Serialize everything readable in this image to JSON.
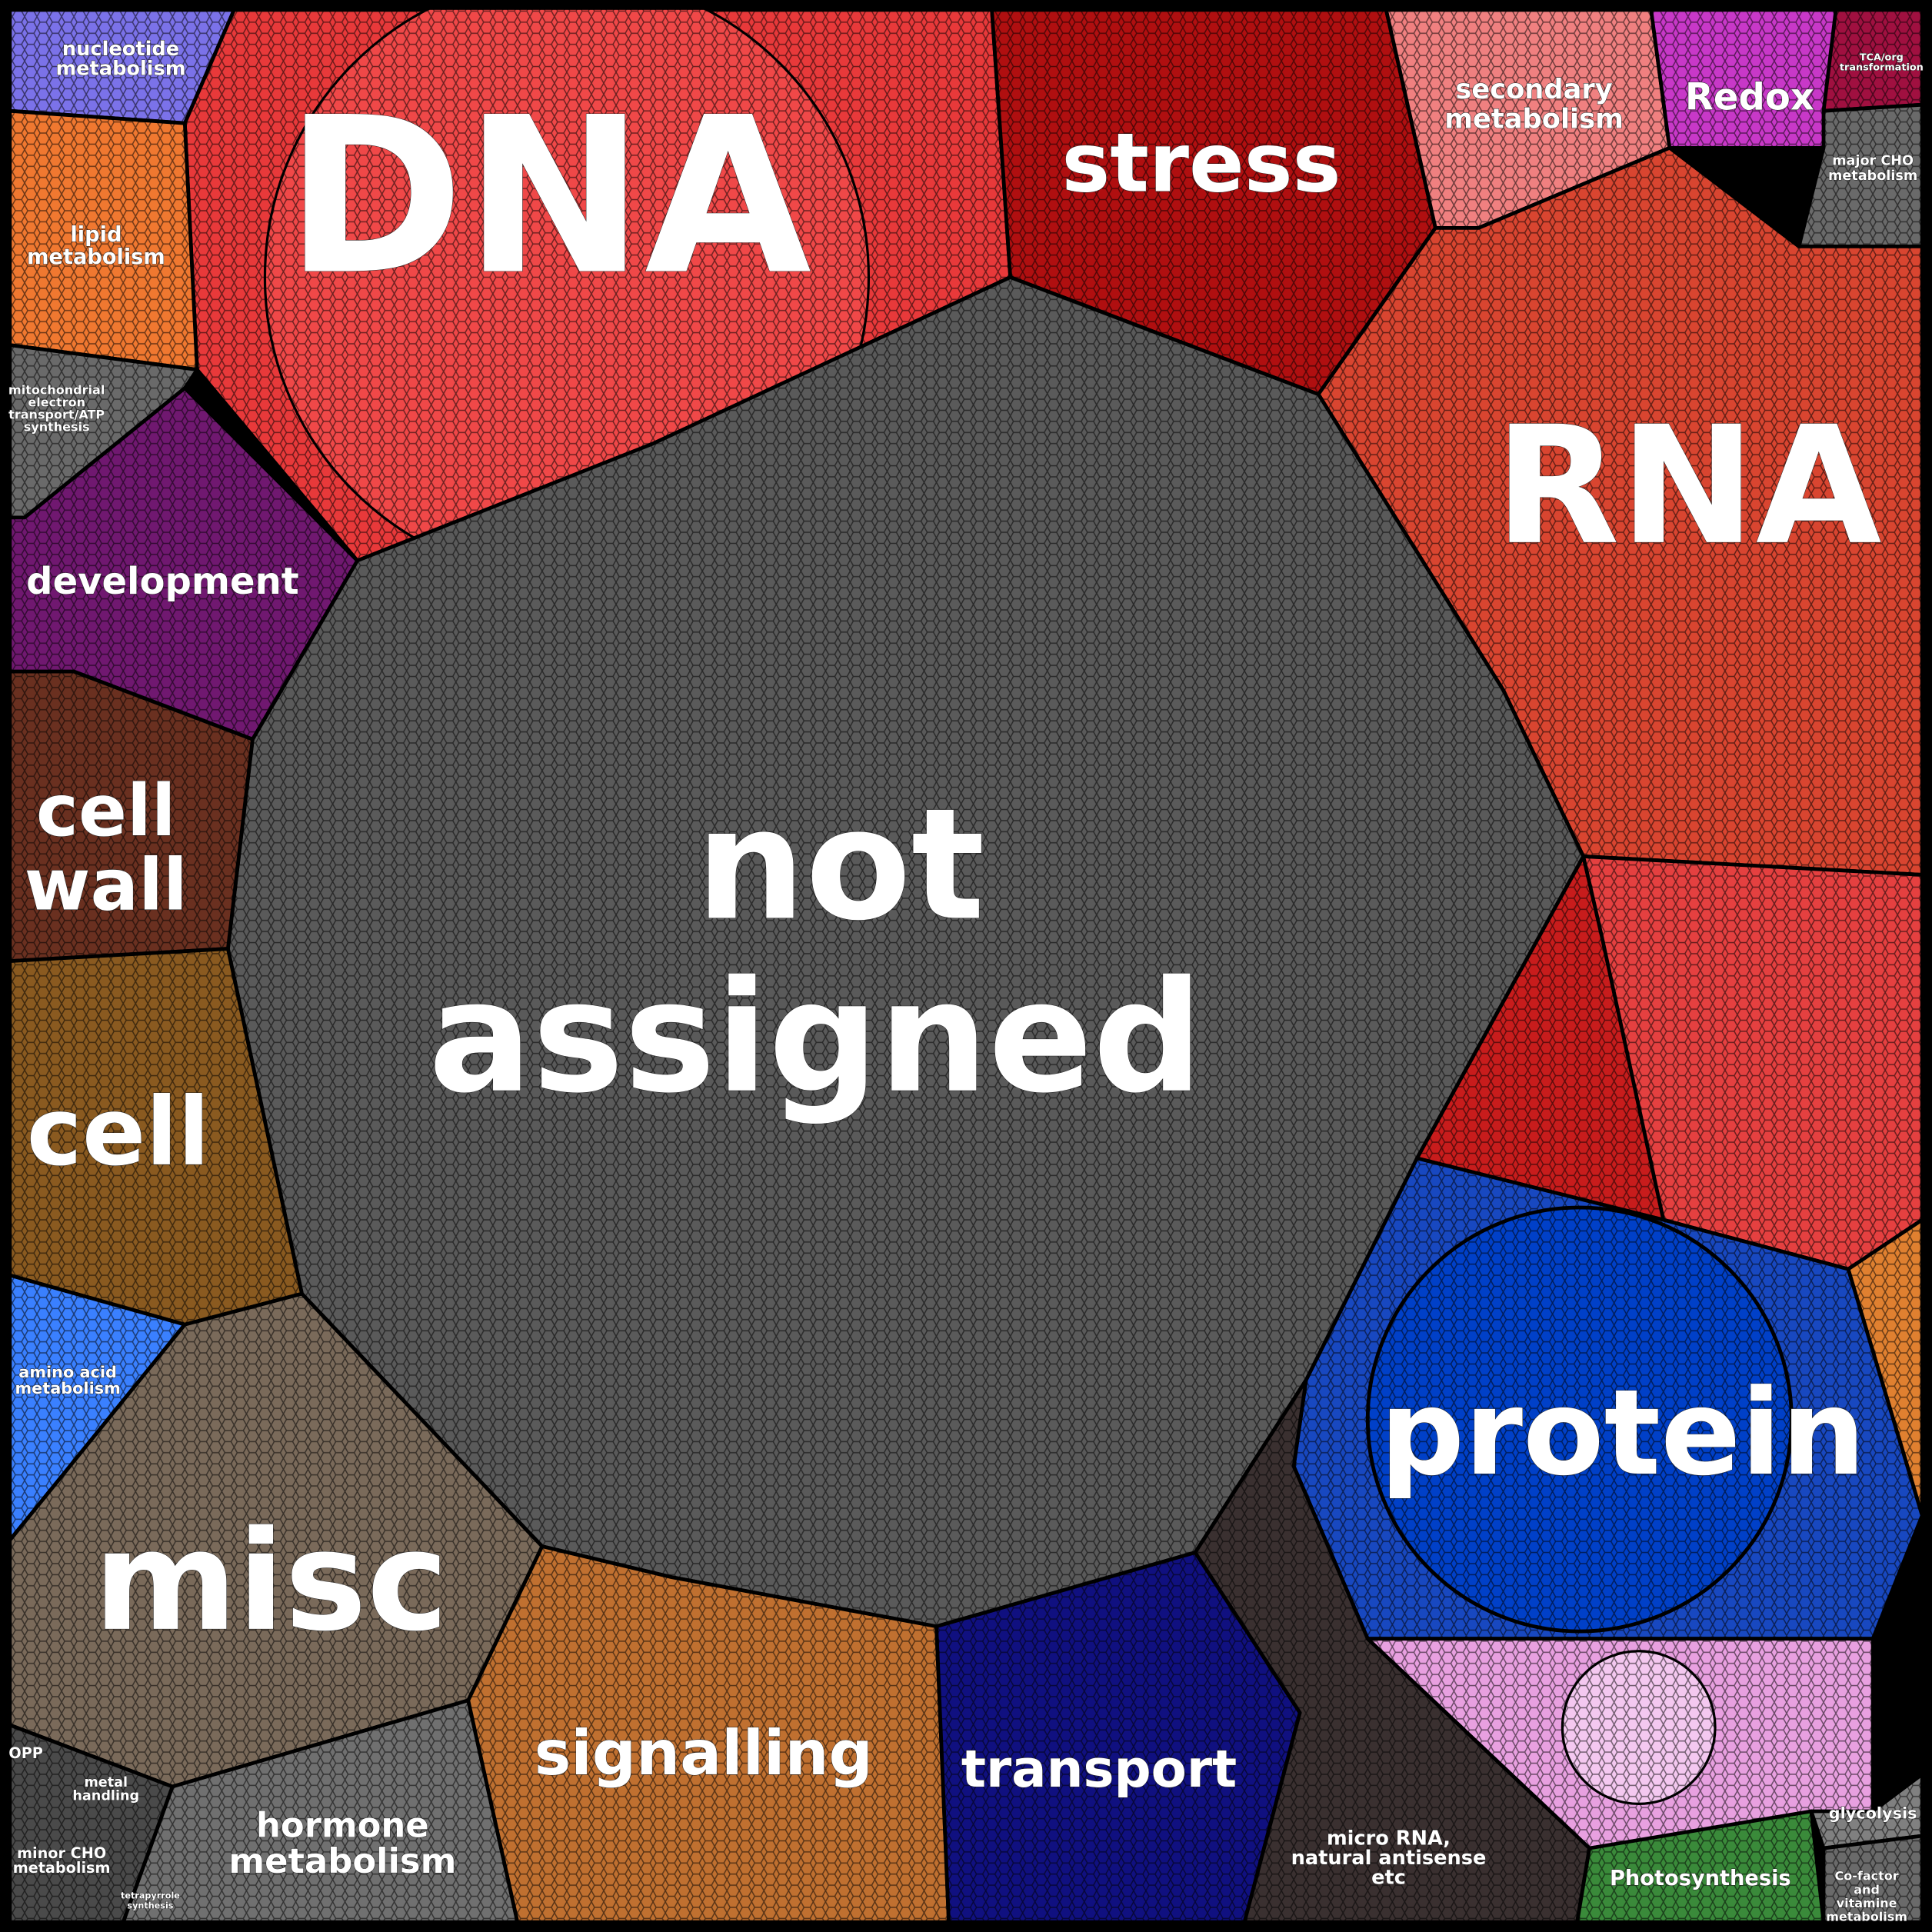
{
  "regions": [
    {
      "lines": [
        "nucleotide",
        "metabolism"
      ]
    },
    {
      "lines": [
        "DNA"
      ]
    },
    {
      "lines": [
        "stress"
      ]
    },
    {
      "lines": [
        "secondary",
        "metabolism"
      ]
    },
    {
      "lines": [
        "Redox"
      ]
    },
    {
      "lines": [
        "TCA/org",
        "transformation"
      ]
    },
    {
      "lines": [
        "major CHO",
        "metabolism"
      ]
    },
    {
      "lines": [
        "lipid",
        "metabolism"
      ]
    },
    {
      "lines": [
        "mitochondrial",
        "electron",
        "transport/ATP",
        "synthesis"
      ]
    },
    {
      "lines": [
        "RNA"
      ]
    },
    {
      "lines": [
        "development"
      ]
    },
    {
      "lines": [
        "cell",
        "wall"
      ]
    },
    {
      "lines": [
        "not",
        "assigned"
      ]
    },
    {
      "lines": [
        "cell"
      ]
    },
    {
      "lines": [
        "amino acid",
        "metabolism"
      ]
    },
    {
      "lines": [
        "protein"
      ]
    },
    {
      "lines": [
        "misc"
      ]
    },
    {
      "lines": [
        "OPP"
      ]
    },
    {
      "lines": [
        "metal",
        "handling"
      ]
    },
    {
      "lines": [
        "minor CHO",
        "metabolism"
      ]
    },
    {
      "lines": [
        "tetrapyrrole",
        "synthesis"
      ]
    },
    {
      "lines": [
        "hormone",
        "metabolism"
      ]
    },
    {
      "lines": [
        "signalling"
      ]
    },
    {
      "lines": [
        "transport"
      ]
    },
    {
      "lines": [
        "micro RNA,",
        "natural antisense",
        "etc"
      ]
    },
    {
      "lines": [
        "Photosynthesis"
      ]
    },
    {
      "lines": [
        "glycolysis"
      ]
    },
    {
      "lines": [
        "Co-factor",
        "and",
        "vitamine",
        "metabolism"
      ]
    }
  ]
}
